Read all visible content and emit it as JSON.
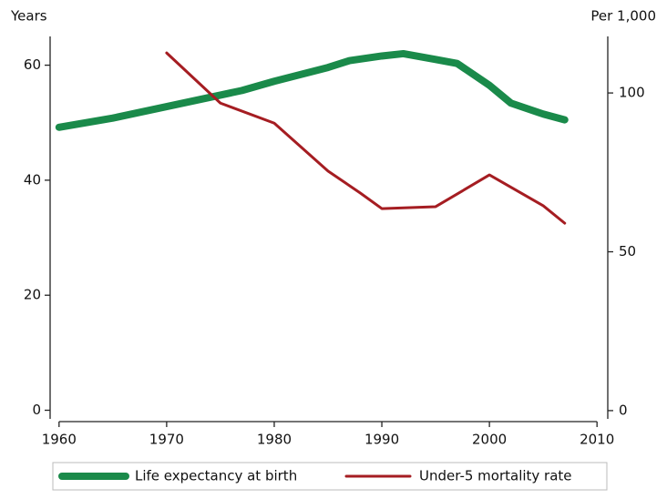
{
  "chart_data": {
    "type": "line",
    "y_label": "Years",
    "y2_label": "Per 1,000",
    "xlim": [
      1959,
      2011
    ],
    "xticks": [
      1960,
      1970,
      1980,
      1990,
      2000,
      2010
    ],
    "ylim": [
      -1.5,
      65
    ],
    "yticks": [
      0,
      20,
      40,
      60
    ],
    "y2lim": [
      -2.6,
      117.8
    ],
    "y2ticks": [
      0,
      50,
      100
    ],
    "series": [
      {
        "name": "Life expectancy at birth",
        "color": "#1a8a4a",
        "width": 8,
        "axis": "y",
        "x": [
          1960,
          1965,
          1970,
          1975,
          1977,
          1980,
          1985,
          1987,
          1990,
          1992,
          1995,
          1997,
          2000,
          2002,
          2005,
          2007
        ],
        "values": [
          49.2,
          50.8,
          52.8,
          54.8,
          55.6,
          57.2,
          59.6,
          60.8,
          61.6,
          62.0,
          61.0,
          60.3,
          56.5,
          53.4,
          51.5,
          50.5
        ]
      },
      {
        "name": "Under-5 mortality rate",
        "color": "#a51d22",
        "width": 3,
        "axis": "y2",
        "x": [
          1970,
          1975,
          1980,
          1985,
          1988,
          1990,
          1995,
          2000,
          2005,
          2007
        ],
        "values": [
          112.6,
          96.8,
          90.5,
          75.4,
          68.5,
          63.6,
          64.2,
          74.2,
          64.5,
          59.0
        ]
      }
    ]
  }
}
